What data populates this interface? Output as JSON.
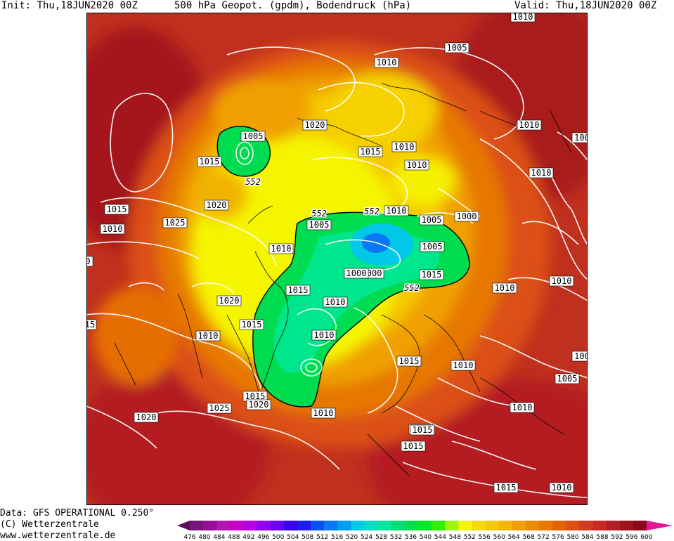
{
  "header": {
    "init": "Init: Thu,18JUN2020 00Z",
    "title": "500 hPa Geopot. (gpdm), Bodendruck (hPa)",
    "valid": "Valid: Thu,18JUN2020 00Z"
  },
  "footer": {
    "data_source": "Data: GFS OPERATIONAL 0.250°",
    "copyright": "(C) Wetterzentrale",
    "url": "www.wetterzentrale.de"
  },
  "colors": {
    "ramp": [
      "#5a0f5a",
      "#78147a",
      "#960f96",
      "#b414b4",
      "#c800c8",
      "#b400e6",
      "#9600f0",
      "#6e00f5",
      "#3c00f0",
      "#1e1ef0",
      "#0a50f5",
      "#0a78f5",
      "#00a0f0",
      "#00c8e6",
      "#00dcc8",
      "#00e6a0",
      "#00dc78",
      "#00dc50",
      "#00e628",
      "#32f000",
      "#a0f500",
      "#f5f500",
      "#f5dc00",
      "#f5c800",
      "#f5b400",
      "#f0a000",
      "#eb8c00",
      "#e67800",
      "#e16400",
      "#dc5014",
      "#d23c1e",
      "#c82828",
      "#b41e28",
      "#a0141e",
      "#8c0a1e",
      "#e61496"
    ],
    "contour": "#ffffff",
    "coast": "#000000"
  },
  "colorbar": {
    "ticks": [
      "476",
      "480",
      "484",
      "488",
      "492",
      "496",
      "500",
      "504",
      "508",
      "512",
      "516",
      "520",
      "524",
      "528",
      "532",
      "536",
      "540",
      "544",
      "548",
      "552",
      "556",
      "560",
      "564",
      "568",
      "572",
      "576",
      "580",
      "584",
      "588",
      "592",
      "596",
      "600"
    ]
  },
  "map": {
    "pressure_labels": [
      "1010",
      "1005",
      "1010",
      "1020",
      "1005",
      "1015",
      "1015",
      "1010",
      "1010",
      "1010",
      "1010",
      "1010",
      "1015",
      "1020",
      "1025",
      "1010",
      "1010",
      "1005",
      "1000",
      "1005",
      "1000",
      "1015",
      "1010",
      "1015",
      "1010",
      "1005",
      "1020",
      "1015",
      "1010",
      "1015",
      "1010",
      "1005",
      "1010",
      "1015",
      "1010",
      "1015",
      "1020",
      "1025",
      "1020",
      "1010",
      "1015",
      "1015",
      "1015",
      "1010",
      "1010",
      "1000",
      "0",
      "15",
      "100",
      "100"
    ],
    "geopot_labels": [
      "552",
      "552",
      "552",
      "552"
    ]
  }
}
